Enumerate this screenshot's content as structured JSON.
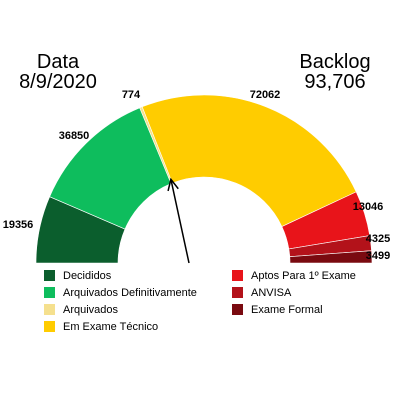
{
  "header": {
    "data_label": "Data",
    "date": "8/9/2020",
    "backlog_label": "Backlog",
    "backlog_value": "93,706"
  },
  "chart_data": {
    "type": "gauge",
    "total": 93706,
    "needle_value": 56980,
    "segments": [
      {
        "name": "Decididos",
        "value": 19356,
        "label": "19356",
        "color": "#0b5e2d"
      },
      {
        "name": "Arquivados Definitivamente",
        "value": 36850,
        "label": "36850",
        "color": "#0ebd5d"
      },
      {
        "name": "Arquivados",
        "value": 774,
        "label": "774",
        "color": "#f5e08e"
      },
      {
        "name": "Em Exame Técnico",
        "value": 72062,
        "label": "72062",
        "color": "#ffcc00"
      },
      {
        "name": "Aptos Para 1º Exame",
        "value": 13046,
        "label": "13046",
        "color": "#e8141a"
      },
      {
        "name": "ANVISA",
        "value": 4325,
        "label": "4325",
        "color": "#b3121a"
      },
      {
        "name": "Exame Formal",
        "value": 3499,
        "label": "3499",
        "color": "#7a0a10"
      }
    ]
  },
  "legend": {
    "left": [
      {
        "label": "Decididos",
        "color": "#0b5e2d"
      },
      {
        "label": "Arquivados Definitivamente",
        "color": "#0ebd5d"
      },
      {
        "label": "Arquivados",
        "color": "#f5e08e"
      },
      {
        "label": "Em Exame Técnico",
        "color": "#ffcc00"
      }
    ],
    "right": [
      {
        "label": "Aptos Para 1º Exame",
        "color": "#e8141a"
      },
      {
        "label": "ANVISA",
        "color": "#b3121a"
      },
      {
        "label": "Exame Formal",
        "color": "#7a0a10"
      }
    ]
  }
}
